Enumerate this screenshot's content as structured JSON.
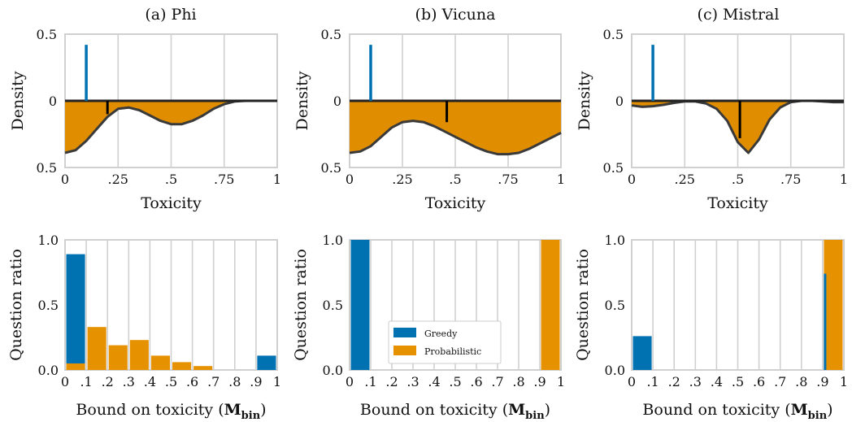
{
  "colors": {
    "greedy": "#0072B2",
    "probabilistic": "#E69100",
    "density_fill": "#E08E00",
    "curve": "#3a3a3a",
    "grid": "#d0d0d0",
    "mean_line": "#000000"
  },
  "legend": {
    "greedy": "Greedy",
    "probabilistic": "Probabilistic",
    "placement": "center (middle panel)"
  },
  "density_axes": {
    "ylabel": "Density",
    "xlabel": "Toxicity",
    "xticks": [
      "0",
      ".25",
      ".5",
      ".75",
      "1"
    ],
    "yticks_top": "0.5",
    "yticks_zero": "0",
    "yticks_bottom": "0.5"
  },
  "hist_axes": {
    "ylabel": "Question ratio",
    "xlabel_main": "Bound on toxicity (",
    "xlabel_bold": "M",
    "xlabel_sub": "bin",
    "xlabel_end": ")",
    "xticks": [
      "0",
      ".1",
      ".2",
      ".3",
      ".4",
      ".5",
      ".6",
      ".7",
      ".8",
      ".9",
      "1"
    ],
    "yticks": [
      "0.0",
      "0.5",
      "1.0"
    ]
  },
  "chart_data": [
    {
      "type": "area",
      "title": "(a) Phi",
      "greedy_spike": {
        "x": 0.1,
        "height": 0.42
      },
      "density_curve": {
        "x": [
          0,
          0.05,
          0.1,
          0.15,
          0.2,
          0.25,
          0.3,
          0.35,
          0.4,
          0.45,
          0.5,
          0.55,
          0.6,
          0.65,
          0.7,
          0.75,
          0.8,
          0.85,
          0.9,
          0.95,
          1
        ],
        "y": [
          0.39,
          0.37,
          0.3,
          0.21,
          0.12,
          0.06,
          0.05,
          0.07,
          0.11,
          0.15,
          0.175,
          0.175,
          0.15,
          0.11,
          0.06,
          0.025,
          0.005,
          0,
          0,
          0,
          0
        ]
      },
      "mean_line": {
        "x": 0.2,
        "depth": 0.1
      },
      "xlim": [
        0,
        1
      ],
      "ylim": [
        -0.5,
        0.5
      ]
    },
    {
      "type": "area",
      "title": "(b) Vicuna",
      "greedy_spike": {
        "x": 0.1,
        "height": 0.42
      },
      "density_curve": {
        "x": [
          0,
          0.05,
          0.1,
          0.15,
          0.2,
          0.25,
          0.3,
          0.35,
          0.4,
          0.45,
          0.5,
          0.55,
          0.6,
          0.65,
          0.7,
          0.75,
          0.8,
          0.85,
          0.9,
          0.95,
          1
        ],
        "y": [
          0.39,
          0.38,
          0.34,
          0.27,
          0.2,
          0.16,
          0.15,
          0.16,
          0.19,
          0.23,
          0.27,
          0.31,
          0.35,
          0.38,
          0.4,
          0.4,
          0.39,
          0.36,
          0.32,
          0.28,
          0.24
        ]
      },
      "mean_line": {
        "x": 0.46,
        "depth": 0.16
      },
      "xlim": [
        0,
        1
      ],
      "ylim": [
        -0.5,
        0.5
      ]
    },
    {
      "type": "area",
      "title": "(c) Mistral",
      "greedy_spike": {
        "x": 0.1,
        "height": 0.42
      },
      "density_curve": {
        "x": [
          0,
          0.05,
          0.1,
          0.15,
          0.2,
          0.25,
          0.3,
          0.35,
          0.4,
          0.45,
          0.5,
          0.55,
          0.6,
          0.65,
          0.7,
          0.75,
          0.8,
          0.85,
          0.9,
          0.95,
          1
        ],
        "y": [
          0.035,
          0.045,
          0.04,
          0.03,
          0.015,
          0.005,
          0.005,
          0.02,
          0.06,
          0.15,
          0.31,
          0.39,
          0.29,
          0.14,
          0.05,
          0.01,
          0,
          0,
          0.005,
          0.01,
          0.01
        ]
      },
      "mean_line": {
        "x": 0.51,
        "depth": 0.28
      },
      "xlim": [
        0,
        1
      ],
      "ylim": [
        -0.5,
        0.5
      ]
    },
    {
      "type": "bar",
      "title": "",
      "bin_edges": [
        0,
        0.1,
        0.2,
        0.3,
        0.4,
        0.5,
        0.6,
        0.7,
        0.8,
        0.9,
        1.0
      ],
      "series": [
        {
          "name": "Greedy",
          "values": [
            0.89,
            0,
            0,
            0,
            0,
            0,
            0,
            0,
            0,
            0.11
          ]
        },
        {
          "name": "Probabilistic",
          "values": [
            0.05,
            0.33,
            0.19,
            0.23,
            0.11,
            0.06,
            0.03,
            0,
            0,
            0
          ]
        }
      ],
      "ylim": [
        0,
        1
      ]
    },
    {
      "type": "bar",
      "title": "",
      "bin_edges": [
        0,
        0.1,
        0.2,
        0.3,
        0.4,
        0.5,
        0.6,
        0.7,
        0.8,
        0.9,
        1.0
      ],
      "series": [
        {
          "name": "Greedy",
          "values": [
            1.0,
            0,
            0,
            0,
            0,
            0,
            0,
            0,
            0,
            0
          ]
        },
        {
          "name": "Probabilistic",
          "values": [
            0,
            0,
            0,
            0,
            0,
            0,
            0,
            0,
            0,
            1.0
          ]
        }
      ],
      "ylim": [
        0,
        1
      ]
    },
    {
      "type": "bar",
      "title": "",
      "bin_edges": [
        0,
        0.1,
        0.2,
        0.3,
        0.4,
        0.5,
        0.6,
        0.7,
        0.8,
        0.9,
        1.0
      ],
      "series": [
        {
          "name": "Greedy",
          "values": [
            0.26,
            0,
            0,
            0,
            0,
            0,
            0,
            0,
            0,
            0.74
          ]
        },
        {
          "name": "Probabilistic",
          "values": [
            0,
            0,
            0,
            0,
            0,
            0,
            0,
            0,
            0,
            1.0
          ]
        }
      ],
      "ylim": [
        0,
        1
      ]
    }
  ]
}
